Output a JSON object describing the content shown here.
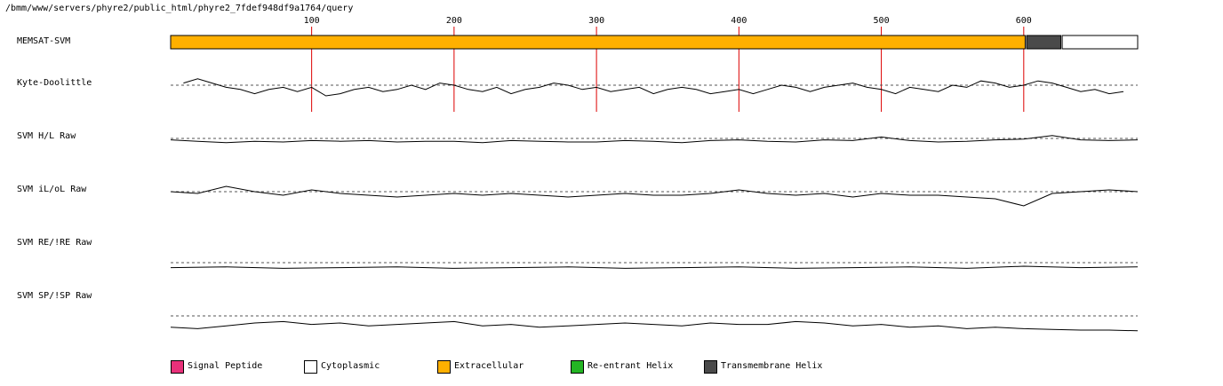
{
  "header": {
    "path": "/bmm/www/servers/phyre2/public_html/phyre2_7fdef948df9a1764/query"
  },
  "tracks": [
    {
      "key": "memsat",
      "label": "MEMSAT-SVM"
    },
    {
      "key": "kd",
      "label": "Kyte-Doolittle"
    },
    {
      "key": "hl",
      "label": "SVM H/L Raw"
    },
    {
      "key": "iloL",
      "label": "SVM iL/oL Raw"
    },
    {
      "key": "re",
      "label": "SVM RE/!RE Raw"
    },
    {
      "key": "sp",
      "label": "SVM SP/!SP Raw"
    }
  ],
  "legend": [
    {
      "label": "Signal Peptide",
      "color": "#e8317a"
    },
    {
      "label": "Cytoplasmic",
      "color": "#ffffff"
    },
    {
      "label": "Extracellular",
      "color": "#ffb000"
    },
    {
      "label": "Re-entrant Helix",
      "color": "#24b524"
    },
    {
      "label": "Transmembrane Helix",
      "color": "#4a4a4a"
    }
  ],
  "chart_data": {
    "type": "line",
    "x_ticks": [
      100,
      200,
      300,
      400,
      500,
      600
    ],
    "x_range": [
      1,
      680
    ],
    "tick_line_color": "#dd0000",
    "memsat_segments": [
      {
        "start": 1,
        "end": 601,
        "class": "Extracellular"
      },
      {
        "start": 602,
        "end": 626,
        "class": "Transmembrane Helix"
      },
      {
        "start": 627,
        "end": 680,
        "class": "Cytoplasmic"
      }
    ],
    "series": [
      {
        "name": "Kyte-Doolittle",
        "x": [
          10,
          20,
          30,
          40,
          50,
          60,
          70,
          80,
          90,
          100,
          110,
          120,
          130,
          140,
          150,
          160,
          170,
          180,
          190,
          200,
          210,
          220,
          230,
          240,
          250,
          260,
          270,
          280,
          290,
          300,
          310,
          320,
          330,
          340,
          350,
          360,
          370,
          380,
          390,
          400,
          410,
          420,
          430,
          440,
          450,
          460,
          470,
          480,
          490,
          500,
          510,
          520,
          530,
          540,
          550,
          560,
          570,
          580,
          590,
          600,
          610,
          620,
          630,
          640,
          650,
          660,
          670
        ],
        "y": [
          0.2,
          0.6,
          0.2,
          -0.2,
          -0.4,
          -0.8,
          -0.4,
          -0.2,
          -0.6,
          -0.2,
          -1.0,
          -0.8,
          -0.4,
          -0.2,
          -0.6,
          -0.4,
          0.0,
          -0.4,
          0.2,
          0.0,
          -0.4,
          -0.6,
          -0.2,
          -0.8,
          -0.4,
          -0.2,
          0.2,
          0.0,
          -0.4,
          -0.2,
          -0.6,
          -0.4,
          -0.2,
          -0.8,
          -0.4,
          -0.2,
          -0.4,
          -0.8,
          -0.6,
          -0.4,
          -0.8,
          -0.4,
          0.0,
          -0.2,
          -0.6,
          -0.2,
          0.0,
          0.2,
          -0.2,
          -0.4,
          -0.8,
          -0.2,
          -0.4,
          -0.6,
          0.0,
          -0.2,
          0.4,
          0.2,
          -0.2,
          0.0,
          0.4,
          0.2,
          -0.2,
          -0.6,
          -0.4,
          -0.8,
          -0.6
        ],
        "baseline": 0
      },
      {
        "name": "SVM H/L Raw",
        "x": [
          1,
          20,
          40,
          60,
          80,
          100,
          120,
          140,
          160,
          180,
          200,
          220,
          240,
          260,
          280,
          300,
          320,
          340,
          360,
          380,
          400,
          420,
          440,
          460,
          480,
          500,
          520,
          540,
          560,
          580,
          600,
          620,
          640,
          660,
          680
        ],
        "y": [
          -0.2,
          -0.4,
          -0.6,
          -0.4,
          -0.5,
          -0.3,
          -0.4,
          -0.3,
          -0.5,
          -0.4,
          -0.4,
          -0.6,
          -0.3,
          -0.4,
          -0.5,
          -0.5,
          -0.3,
          -0.4,
          -0.6,
          -0.3,
          -0.2,
          -0.4,
          -0.5,
          -0.2,
          -0.3,
          0.2,
          -0.3,
          -0.5,
          -0.4,
          -0.2,
          -0.1,
          0.4,
          -0.2,
          -0.3,
          -0.2
        ],
        "baseline": 0
      },
      {
        "name": "SVM iL/oL Raw",
        "x": [
          1,
          20,
          40,
          60,
          80,
          100,
          120,
          140,
          160,
          180,
          200,
          220,
          240,
          260,
          280,
          300,
          320,
          340,
          360,
          380,
          400,
          420,
          440,
          460,
          480,
          500,
          520,
          540,
          560,
          580,
          600,
          620,
          640,
          660,
          680
        ],
        "y": [
          0.0,
          -0.2,
          0.6,
          0.0,
          -0.4,
          0.2,
          -0.2,
          -0.4,
          -0.6,
          -0.4,
          -0.2,
          -0.4,
          -0.2,
          -0.4,
          -0.6,
          -0.4,
          -0.2,
          -0.4,
          -0.4,
          -0.2,
          0.2,
          -0.2,
          -0.4,
          -0.2,
          -0.6,
          -0.2,
          -0.4,
          -0.4,
          -0.6,
          -0.8,
          -1.6,
          -0.2,
          0.0,
          0.2,
          0.0
        ],
        "baseline": 0
      },
      {
        "name": "SVM RE/!RE Raw",
        "x": [
          1,
          40,
          80,
          120,
          160,
          200,
          240,
          280,
          320,
          360,
          400,
          440,
          480,
          520,
          560,
          600,
          640,
          680
        ],
        "y": [
          -0.7,
          -0.6,
          -0.8,
          -0.7,
          -0.6,
          -0.8,
          -0.7,
          -0.6,
          -0.8,
          -0.7,
          -0.6,
          -0.8,
          -0.7,
          -0.6,
          -0.8,
          -0.5,
          -0.7,
          -0.6
        ],
        "baseline": 0
      },
      {
        "name": "SVM SP/!SP Raw",
        "x": [
          1,
          20,
          40,
          60,
          80,
          100,
          120,
          140,
          160,
          180,
          200,
          220,
          240,
          260,
          280,
          300,
          320,
          340,
          360,
          380,
          400,
          420,
          440,
          460,
          480,
          500,
          520,
          540,
          560,
          580,
          600,
          620,
          640,
          660,
          680
        ],
        "y": [
          -1.6,
          -1.8,
          -1.4,
          -1.0,
          -0.8,
          -1.2,
          -1.0,
          -1.4,
          -1.2,
          -1.0,
          -0.8,
          -1.4,
          -1.2,
          -1.6,
          -1.4,
          -1.2,
          -1.0,
          -1.2,
          -1.4,
          -1.0,
          -1.2,
          -1.2,
          -0.8,
          -1.0,
          -1.4,
          -1.2,
          -1.6,
          -1.4,
          -1.8,
          -1.6,
          -1.8,
          -1.9,
          -2.0,
          -2.0,
          -2.1
        ],
        "baseline": 0
      }
    ]
  }
}
